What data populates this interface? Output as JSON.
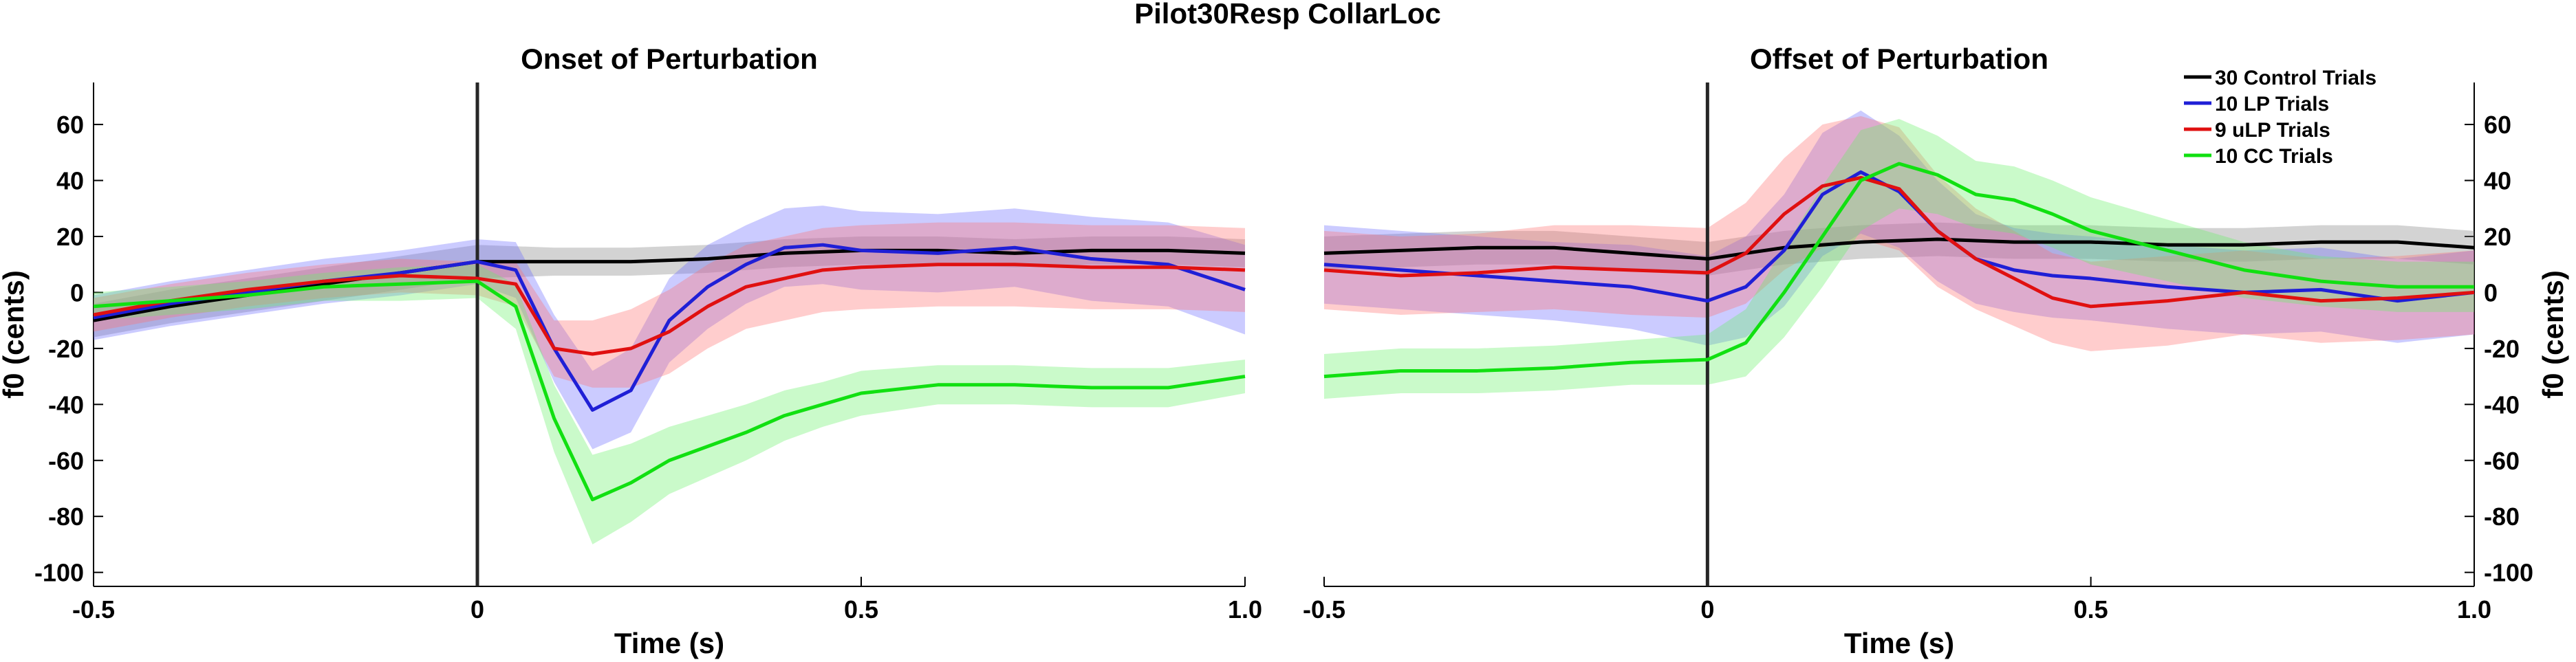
{
  "figure": {
    "title": "Pilot30Resp CollarLoc"
  },
  "chart_data": [
    {
      "type": "line",
      "title": "Onset of Perturbation",
      "xlabel": "Time (s)",
      "ylabel": "f0 (cents)",
      "y_axis_side": "left",
      "xlim": [
        -0.5,
        1.0
      ],
      "ylim": [
        -105,
        75
      ],
      "xticks": [
        -0.5,
        0,
        0.5,
        1.0
      ],
      "xtick_labels": [
        "-0.5",
        "0",
        "0.5",
        "1.0"
      ],
      "yticks": [
        60,
        40,
        20,
        0,
        -20,
        -40,
        -60,
        -80,
        -100
      ],
      "ytick_labels": [
        "60",
        "40",
        "20",
        "0",
        "-20",
        "-40",
        "-60",
        "-80",
        "-100"
      ],
      "event_line_x": 0,
      "legend": false,
      "series": [
        {
          "name": "30 Control Trials",
          "color": "#000000",
          "band_color": "#808080",
          "x": [
            -0.5,
            -0.4,
            -0.3,
            -0.2,
            -0.1,
            0.0,
            0.1,
            0.2,
            0.3,
            0.4,
            0.5,
            0.6,
            0.7,
            0.8,
            0.9,
            1.0
          ],
          "y": [
            -10,
            -5,
            -1,
            3,
            7,
            11,
            11,
            11,
            12,
            14,
            15,
            15,
            14,
            15,
            15,
            14
          ],
          "err": [
            6,
            6,
            6,
            6,
            6,
            6,
            5,
            5,
            5,
            5,
            5,
            5,
            5,
            5,
            5,
            5
          ]
        },
        {
          "name": "10 LP Trials",
          "color": "#1f1fd6",
          "band_color": "#6b6bff",
          "x": [
            -0.5,
            -0.4,
            -0.3,
            -0.2,
            -0.1,
            0.0,
            0.05,
            0.1,
            0.15,
            0.2,
            0.25,
            0.3,
            0.35,
            0.4,
            0.45,
            0.5,
            0.6,
            0.7,
            0.8,
            0.9,
            1.0
          ],
          "y": [
            -9,
            -4,
            0,
            4,
            7,
            11,
            8,
            -20,
            -42,
            -35,
            -10,
            2,
            10,
            16,
            17,
            15,
            14,
            16,
            12,
            10,
            1
          ],
          "err": [
            8,
            8,
            8,
            8,
            8,
            8,
            10,
            12,
            14,
            15,
            15,
            15,
            14,
            14,
            14,
            14,
            14,
            14,
            15,
            15,
            16
          ]
        },
        {
          "name": "9 uLP Trials",
          "color": "#e01010",
          "band_color": "#ff7070",
          "x": [
            -0.5,
            -0.4,
            -0.3,
            -0.2,
            -0.1,
            0.0,
            0.05,
            0.1,
            0.15,
            0.2,
            0.25,
            0.3,
            0.35,
            0.4,
            0.45,
            0.5,
            0.6,
            0.7,
            0.8,
            0.9,
            1.0
          ],
          "y": [
            -8,
            -3,
            1,
            4,
            6,
            5,
            3,
            -20,
            -22,
            -20,
            -14,
            -5,
            2,
            5,
            8,
            9,
            10,
            10,
            9,
            9,
            8
          ],
          "err": [
            6,
            6,
            6,
            6,
            6,
            6,
            8,
            10,
            12,
            14,
            15,
            15,
            15,
            15,
            15,
            15,
            15,
            15,
            15,
            15,
            15
          ]
        },
        {
          "name": "10 CC Trials",
          "color": "#11e011",
          "band_color": "#66f066",
          "x": [
            -0.5,
            -0.4,
            -0.3,
            -0.2,
            -0.1,
            0.0,
            0.05,
            0.1,
            0.15,
            0.2,
            0.25,
            0.3,
            0.35,
            0.4,
            0.45,
            0.5,
            0.6,
            0.7,
            0.8,
            0.9,
            1.0
          ],
          "y": [
            -5,
            -3,
            -1,
            2,
            3,
            4,
            -5,
            -45,
            -74,
            -68,
            -60,
            -55,
            -50,
            -44,
            -40,
            -36,
            -33,
            -33,
            -34,
            -34,
            -30
          ],
          "err": [
            5,
            5,
            5,
            5,
            6,
            6,
            8,
            12,
            16,
            14,
            12,
            11,
            10,
            9,
            8,
            8,
            7,
            7,
            7,
            7,
            6
          ]
        }
      ]
    },
    {
      "type": "line",
      "title": "Offset of Perturbation",
      "xlabel": "Time (s)",
      "ylabel": "f0 (cents)",
      "y_axis_side": "right",
      "xlim": [
        -0.5,
        1.0
      ],
      "ylim": [
        -105,
        75
      ],
      "xticks": [
        -0.5,
        0,
        0.5,
        1.0
      ],
      "xtick_labels": [
        "-0.5",
        "0",
        "0.5",
        "1.0"
      ],
      "yticks": [
        60,
        40,
        20,
        0,
        -20,
        -40,
        -60,
        -80,
        -100
      ],
      "ytick_labels": [
        "60",
        "40",
        "20",
        "0",
        "-20",
        "-40",
        "-60",
        "-80",
        "-100"
      ],
      "event_line_x": 0,
      "legend": true,
      "legend_position": "top-right",
      "series": [
        {
          "name": "30 Control Trials",
          "color": "#000000",
          "band_color": "#808080",
          "x": [
            -0.5,
            -0.4,
            -0.3,
            -0.2,
            -0.1,
            0.0,
            0.1,
            0.2,
            0.3,
            0.4,
            0.5,
            0.6,
            0.7,
            0.8,
            0.9,
            1.0
          ],
          "y": [
            14,
            15,
            16,
            16,
            14,
            12,
            16,
            18,
            19,
            18,
            18,
            17,
            17,
            18,
            18,
            16
          ],
          "err": [
            6,
            6,
            6,
            6,
            6,
            6,
            6,
            6,
            6,
            6,
            6,
            6,
            6,
            6,
            6,
            6
          ]
        },
        {
          "name": "10 LP Trials",
          "color": "#1f1fd6",
          "band_color": "#6b6bff",
          "x": [
            -0.5,
            -0.4,
            -0.3,
            -0.2,
            -0.1,
            0.0,
            0.05,
            0.1,
            0.15,
            0.2,
            0.25,
            0.3,
            0.35,
            0.4,
            0.45,
            0.5,
            0.6,
            0.7,
            0.8,
            0.9,
            1.0
          ],
          "y": [
            10,
            8,
            6,
            4,
            2,
            -3,
            2,
            15,
            35,
            43,
            36,
            22,
            12,
            8,
            6,
            5,
            2,
            0,
            1,
            -3,
            0
          ],
          "err": [
            14,
            14,
            14,
            14,
            15,
            16,
            18,
            20,
            22,
            22,
            20,
            18,
            16,
            15,
            15,
            15,
            15,
            15,
            15,
            15,
            15
          ]
        },
        {
          "name": "9 uLP Trials",
          "color": "#e01010",
          "band_color": "#ff7070",
          "x": [
            -0.5,
            -0.4,
            -0.3,
            -0.2,
            -0.1,
            0.0,
            0.05,
            0.1,
            0.15,
            0.2,
            0.25,
            0.3,
            0.35,
            0.4,
            0.45,
            0.5,
            0.6,
            0.7,
            0.8,
            0.9,
            1.0
          ],
          "y": [
            8,
            6,
            7,
            9,
            8,
            7,
            14,
            28,
            38,
            41,
            37,
            22,
            12,
            5,
            -2,
            -5,
            -3,
            0,
            -3,
            -2,
            0
          ],
          "err": [
            14,
            14,
            14,
            15,
            16,
            16,
            18,
            20,
            22,
            22,
            22,
            20,
            18,
            17,
            16,
            16,
            16,
            15,
            15,
            15,
            15
          ]
        },
        {
          "name": "10 CC Trials",
          "color": "#11e011",
          "band_color": "#66f066",
          "x": [
            -0.5,
            -0.4,
            -0.3,
            -0.2,
            -0.1,
            0.0,
            0.05,
            0.1,
            0.15,
            0.2,
            0.25,
            0.3,
            0.35,
            0.4,
            0.45,
            0.5,
            0.6,
            0.7,
            0.8,
            0.9,
            1.0
          ],
          "y": [
            -30,
            -28,
            -28,
            -27,
            -25,
            -24,
            -18,
            0,
            20,
            40,
            46,
            42,
            35,
            33,
            28,
            22,
            15,
            8,
            4,
            2,
            2
          ],
          "err": [
            8,
            8,
            8,
            8,
            8,
            9,
            12,
            16,
            18,
            18,
            16,
            14,
            12,
            12,
            12,
            12,
            11,
            10,
            9,
            9,
            9
          ]
        }
      ]
    }
  ]
}
